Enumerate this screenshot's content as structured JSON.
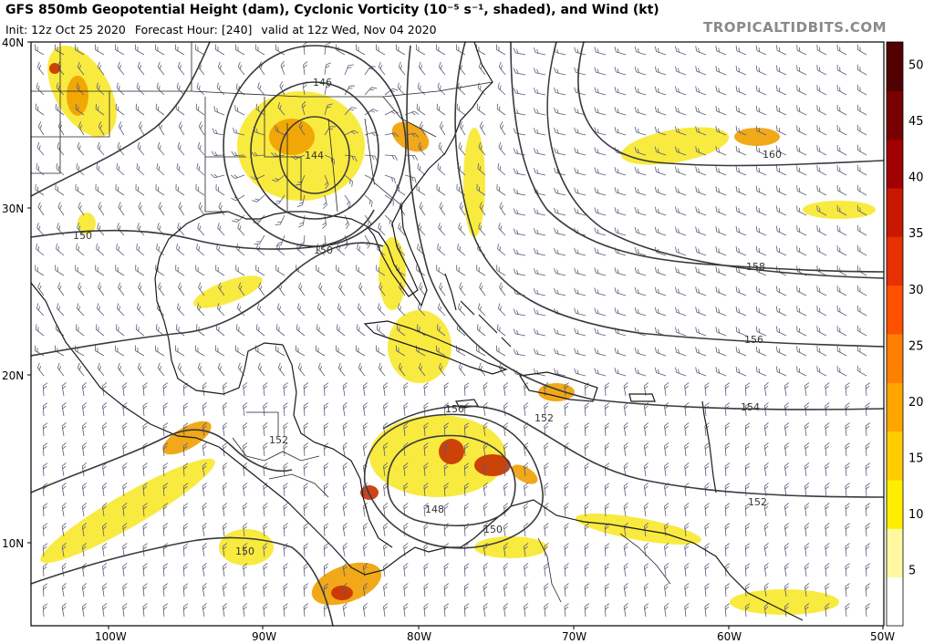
{
  "header": {
    "title": "GFS 850mb Geopotential Height (dam), Cyclonic Vorticity (10⁻⁵ s⁻¹, shaded), and Wind (kt)",
    "init": "Init: 12z Oct 25 2020",
    "forecast_hour": "Forecast Hour: [240]",
    "valid": "valid at 12z Wed, Nov 04 2020",
    "credit": "TROPICALTIDBITS.COM"
  },
  "map": {
    "lon_labels": [
      "100W",
      "90W",
      "80W",
      "70W",
      "60W",
      "50W"
    ],
    "lat_labels": [
      "40N",
      "30N",
      "20N",
      "10N"
    ],
    "contour_labels": [
      "146",
      "144",
      "150",
      "150",
      "160",
      "158",
      "156",
      "154",
      "150",
      "152",
      "152",
      "148",
      "150",
      "150",
      "152"
    ],
    "colors": {
      "land_line": "#1a1a1a",
      "contour_line": "#3a3a3a",
      "barb": "#5a5a7a",
      "shade_low": "#f7e300",
      "shade_mid": "#f0a000",
      "shade_high": "#c83000"
    }
  },
  "colorbar": {
    "labels": [
      "50",
      "45",
      "40",
      "35",
      "30",
      "25",
      "20",
      "15",
      "10",
      "5"
    ],
    "min": 0,
    "max": 52,
    "colors": [
      "#ffffff",
      "#fff8a0",
      "#ffee00",
      "#ffcc00",
      "#ffa500",
      "#ff7f00",
      "#ff5000",
      "#e83000",
      "#c81800",
      "#a00000",
      "#780000",
      "#500000"
    ]
  }
}
